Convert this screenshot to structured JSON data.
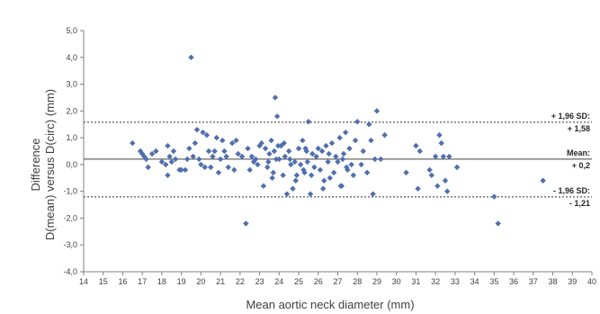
{
  "chart_data": {
    "type": "scatter",
    "xlabel": "Mean aortic neck diameter (mm)",
    "ylabel_line1": "Difference",
    "ylabel_line2": "D(mean) versus D(circ) (mm)",
    "xlim": [
      14,
      40
    ],
    "ylim": [
      -4.0,
      5.0
    ],
    "x_ticks": [
      14,
      15,
      16,
      17,
      18,
      19,
      20,
      21,
      22,
      23,
      24,
      25,
      26,
      27,
      28,
      29,
      30,
      31,
      32,
      33,
      34,
      35,
      36,
      37,
      38,
      39,
      40
    ],
    "y_ticks": [
      5.0,
      4.0,
      3.0,
      2.0,
      1.0,
      0.0,
      -1.0,
      -2.0,
      -3.0,
      -4.0
    ],
    "y_tick_labels": [
      "5,0",
      "4,0",
      "3,0",
      "2,0",
      "1,0",
      "0,0",
      "-1,0",
      "-2,0",
      "-3,0",
      "-4,0"
    ],
    "marker_color": "#4f6fae",
    "reference_lines": [
      {
        "name": "upper-loa",
        "value": 1.58,
        "style": "dotted",
        "label_line1": "+ 1,96 SD:",
        "label_line2": "+ 1,58"
      },
      {
        "name": "mean",
        "value": 0.2,
        "style": "solid",
        "label_line1": "Mean:",
        "label_line2": "+ 0,2"
      },
      {
        "name": "lower-loa",
        "value": -1.21,
        "style": "dotted",
        "label_line1": "- 1,96 SD:",
        "label_line2": "- 1,21"
      }
    ],
    "points": [
      [
        16.5,
        0.8
      ],
      [
        16.9,
        0.5
      ],
      [
        17.0,
        0.4
      ],
      [
        17.2,
        0.2
      ],
      [
        17.3,
        -0.1
      ],
      [
        17.5,
        0.4
      ],
      [
        17.7,
        0.5
      ],
      [
        17.1,
        0.3
      ],
      [
        18.0,
        0.1
      ],
      [
        18.2,
        0.0
      ],
      [
        18.3,
        0.7
      ],
      [
        18.4,
        0.3
      ],
      [
        18.5,
        0.1
      ],
      [
        18.6,
        0.5
      ],
      [
        18.7,
        0.2
      ],
      [
        18.9,
        -0.2
      ],
      [
        18.3,
        -0.4
      ],
      [
        19.0,
        -0.2
      ],
      [
        19.2,
        -0.2
      ],
      [
        19.3,
        0.2
      ],
      [
        19.5,
        4.0
      ],
      [
        19.6,
        0.3
      ],
      [
        19.7,
        0.8
      ],
      [
        19.8,
        1.3
      ],
      [
        19.9,
        0.2
      ],
      [
        19.4,
        0.6
      ],
      [
        20.0,
        0.0
      ],
      [
        20.1,
        1.2
      ],
      [
        20.2,
        -0.1
      ],
      [
        20.3,
        1.1
      ],
      [
        20.4,
        0.5
      ],
      [
        20.5,
        -0.1
      ],
      [
        20.6,
        0.3
      ],
      [
        20.7,
        0.5
      ],
      [
        20.8,
        1.0
      ],
      [
        20.9,
        -0.3
      ],
      [
        21.0,
        0.2
      ],
      [
        21.1,
        0.9
      ],
      [
        21.2,
        0.5
      ],
      [
        21.3,
        0.3
      ],
      [
        21.4,
        -0.1
      ],
      [
        21.6,
        0.8
      ],
      [
        21.7,
        -0.2
      ],
      [
        21.8,
        0.9
      ],
      [
        21.9,
        0.4
      ],
      [
        22.1,
        0.3
      ],
      [
        22.3,
        -2.2
      ],
      [
        22.4,
        0.6
      ],
      [
        22.5,
        -0.2
      ],
      [
        22.6,
        0.3
      ],
      [
        22.7,
        0.1
      ],
      [
        22.8,
        0.2
      ],
      [
        22.9,
        0.0
      ],
      [
        23.0,
        0.7
      ],
      [
        23.1,
        0.8
      ],
      [
        23.2,
        -0.8
      ],
      [
        23.3,
        0.6
      ],
      [
        23.4,
        -0.1
      ],
      [
        23.5,
        0.4
      ],
      [
        23.6,
        0.9
      ],
      [
        23.7,
        -0.3
      ],
      [
        23.8,
        2.5
      ],
      [
        23.9,
        1.8
      ],
      [
        23.75,
        0.5
      ],
      [
        23.85,
        0.2
      ],
      [
        23.95,
        0.7
      ],
      [
        23.65,
        -0.5
      ],
      [
        23.45,
        0.1
      ],
      [
        24.0,
        0.2
      ],
      [
        24.1,
        0.7
      ],
      [
        24.2,
        -0.4
      ],
      [
        24.3,
        0.3
      ],
      [
        24.4,
        -1.1
      ],
      [
        24.5,
        0.5
      ],
      [
        24.6,
        0.0
      ],
      [
        24.7,
        -0.9
      ],
      [
        24.8,
        0.1
      ],
      [
        24.9,
        -0.4
      ],
      [
        24.25,
        0.8
      ],
      [
        24.55,
        0.2
      ],
      [
        24.85,
        -0.6
      ],
      [
        25.0,
        0.6
      ],
      [
        25.1,
        0.0
      ],
      [
        25.2,
        0.9
      ],
      [
        25.3,
        -0.3
      ],
      [
        25.4,
        0.5
      ],
      [
        25.5,
        1.6
      ],
      [
        25.6,
        -1.1
      ],
      [
        25.7,
        0.4
      ],
      [
        25.8,
        -0.1
      ],
      [
        25.9,
        0.3
      ],
      [
        25.25,
        -0.2
      ],
      [
        25.45,
        0.1
      ],
      [
        25.65,
        -0.4
      ],
      [
        25.35,
        0.6
      ],
      [
        26.0,
        0.6
      ],
      [
        26.1,
        -0.2
      ],
      [
        26.2,
        0.5
      ],
      [
        26.3,
        -0.6
      ],
      [
        26.4,
        0.7
      ],
      [
        26.5,
        0.1
      ],
      [
        26.6,
        -0.5
      ],
      [
        26.7,
        0.8
      ],
      [
        26.8,
        -0.3
      ],
      [
        26.9,
        0.3
      ],
      [
        26.25,
        -0.9
      ],
      [
        26.55,
        0.4
      ],
      [
        27.0,
        0.1
      ],
      [
        27.1,
        1.0
      ],
      [
        27.2,
        -0.8
      ],
      [
        27.3,
        0.4
      ],
      [
        27.4,
        1.2
      ],
      [
        27.5,
        -0.2
      ],
      [
        27.6,
        0.6
      ],
      [
        27.7,
        0.0
      ],
      [
        27.8,
        -0.4
      ],
      [
        27.9,
        0.9
      ],
      [
        27.25,
        0.2
      ],
      [
        27.45,
        -0.1
      ],
      [
        27.15,
        -0.8
      ],
      [
        28.0,
        1.6
      ],
      [
        28.2,
        0.0
      ],
      [
        28.3,
        0.5
      ],
      [
        28.5,
        -0.3
      ],
      [
        28.6,
        1.5
      ],
      [
        28.7,
        0.9
      ],
      [
        28.8,
        -1.1
      ],
      [
        28.9,
        0.2
      ],
      [
        29.0,
        2.0
      ],
      [
        29.2,
        0.2
      ],
      [
        29.4,
        1.1
      ],
      [
        30.5,
        -0.3
      ],
      [
        31.0,
        0.7
      ],
      [
        31.1,
        -0.9
      ],
      [
        31.2,
        0.5
      ],
      [
        31.7,
        -0.2
      ],
      [
        31.8,
        -0.4
      ],
      [
        32.0,
        0.3
      ],
      [
        32.1,
        -0.8
      ],
      [
        32.2,
        1.1
      ],
      [
        32.3,
        0.8
      ],
      [
        32.4,
        0.3
      ],
      [
        32.5,
        -0.6
      ],
      [
        32.6,
        -1.0
      ],
      [
        32.7,
        0.3
      ],
      [
        33.1,
        -0.1
      ],
      [
        35.0,
        -1.2
      ],
      [
        35.2,
        -2.2
      ],
      [
        37.5,
        -0.6
      ]
    ]
  }
}
